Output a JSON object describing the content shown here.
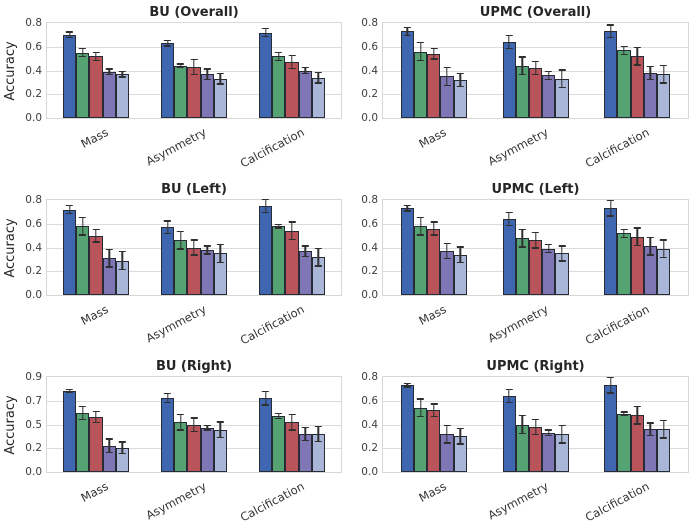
{
  "figure": {
    "background": "#ffffff",
    "palette": {
      "bar_colors": [
        "#3f66b0",
        "#55a273",
        "#b8545a",
        "#7f76b6",
        "#a9b6d8"
      ],
      "bar_edge": "#262b36",
      "error_color": "#2f2f2f",
      "grid_color": "#dcdcdc",
      "spine_color": "#d7d7d7",
      "title_color": "#262626",
      "tick_color": "#404040"
    }
  },
  "chart_data": [
    {
      "type": "bar",
      "title": "BU (Overall)",
      "ylabel": "Accuracy",
      "ylim": [
        0,
        0.8
      ],
      "yticks": [
        {
          "value": 0.0,
          "label": "0.0"
        },
        {
          "value": 0.2,
          "label": "0.2"
        },
        {
          "value": 0.4,
          "label": "0.4"
        },
        {
          "value": 0.6,
          "label": "0.6"
        },
        {
          "value": 0.8,
          "label": "0.8"
        }
      ],
      "grid": true,
      "legend": "none",
      "categories": [
        "Mass",
        "Asymmetry",
        "Calcification"
      ],
      "series": [
        {
          "color": "#3f66b0",
          "values": [
            0.7,
            0.63,
            0.72
          ],
          "errors": [
            0.03,
            0.03,
            0.04
          ]
        },
        {
          "color": "#55a273",
          "values": [
            0.55,
            0.44,
            0.52
          ],
          "errors": [
            0.04,
            0.02,
            0.04
          ]
        },
        {
          "color": "#b8545a",
          "values": [
            0.52,
            0.43,
            0.47
          ],
          "errors": [
            0.04,
            0.07,
            0.06
          ]
        },
        {
          "color": "#7f76b6",
          "values": [
            0.39,
            0.37,
            0.4
          ],
          "errors": [
            0.03,
            0.05,
            0.03
          ]
        },
        {
          "color": "#a9b6d8",
          "values": [
            0.37,
            0.33,
            0.34
          ],
          "errors": [
            0.03,
            0.05,
            0.05
          ]
        }
      ]
    },
    {
      "type": "bar",
      "title": "UPMC (Overall)",
      "ylabel": "",
      "ylim": [
        0,
        0.8
      ],
      "yticks": [
        {
          "value": 0.0,
          "label": "0.0"
        },
        {
          "value": 0.2,
          "label": "0.2"
        },
        {
          "value": 0.4,
          "label": "0.4"
        },
        {
          "value": 0.6,
          "label": "0.6"
        },
        {
          "value": 0.8,
          "label": "0.8"
        }
      ],
      "grid": true,
      "legend": "none",
      "categories": [
        "Mass",
        "Asymmetry",
        "Calcification"
      ],
      "series": [
        {
          "color": "#3f66b0",
          "values": [
            0.73,
            0.64,
            0.73
          ],
          "errors": [
            0.04,
            0.06,
            0.06
          ]
        },
        {
          "color": "#55a273",
          "values": [
            0.56,
            0.44,
            0.57
          ],
          "errors": [
            0.08,
            0.08,
            0.04
          ]
        },
        {
          "color": "#b8545a",
          "values": [
            0.54,
            0.42,
            0.52
          ],
          "errors": [
            0.05,
            0.06,
            0.08
          ]
        },
        {
          "color": "#7f76b6",
          "values": [
            0.35,
            0.36,
            0.38
          ],
          "errors": [
            0.08,
            0.04,
            0.06
          ]
        },
        {
          "color": "#a9b6d8",
          "values": [
            0.32,
            0.33,
            0.37
          ],
          "errors": [
            0.06,
            0.08,
            0.08
          ]
        }
      ]
    },
    {
      "type": "bar",
      "title": "BU (Left)",
      "ylabel": "Accuracy",
      "ylim": [
        0,
        0.8
      ],
      "yticks": [
        {
          "value": 0.0,
          "label": "0.0"
        },
        {
          "value": 0.2,
          "label": "0.2"
        },
        {
          "value": 0.4,
          "label": "0.4"
        },
        {
          "value": 0.6,
          "label": "0.6"
        },
        {
          "value": 0.8,
          "label": "0.8"
        }
      ],
      "grid": true,
      "legend": "none",
      "categories": [
        "Mass",
        "Asymmetry",
        "Calcification"
      ],
      "series": [
        {
          "color": "#3f66b0",
          "values": [
            0.72,
            0.57,
            0.75
          ],
          "errors": [
            0.04,
            0.06,
            0.06
          ]
        },
        {
          "color": "#55a273",
          "values": [
            0.58,
            0.46,
            0.58
          ],
          "errors": [
            0.08,
            0.08,
            0.02
          ]
        },
        {
          "color": "#b8545a",
          "values": [
            0.5,
            0.4,
            0.54
          ],
          "errors": [
            0.06,
            0.07,
            0.08
          ]
        },
        {
          "color": "#7f76b6",
          "values": [
            0.31,
            0.38,
            0.37
          ],
          "errors": [
            0.08,
            0.04,
            0.05
          ]
        },
        {
          "color": "#a9b6d8",
          "values": [
            0.29,
            0.35,
            0.32
          ],
          "errors": [
            0.08,
            0.08,
            0.08
          ]
        }
      ]
    },
    {
      "type": "bar",
      "title": "UPMC (Left)",
      "ylabel": "",
      "ylim": [
        0,
        0.8
      ],
      "yticks": [
        {
          "value": 0.0,
          "label": "0.0"
        },
        {
          "value": 0.2,
          "label": "0.2"
        },
        {
          "value": 0.4,
          "label": "0.4"
        },
        {
          "value": 0.6,
          "label": "0.6"
        },
        {
          "value": 0.8,
          "label": "0.8"
        }
      ],
      "grid": true,
      "legend": "none",
      "categories": [
        "Mass",
        "Asymmetry",
        "Calcification"
      ],
      "series": [
        {
          "color": "#3f66b0",
          "values": [
            0.73,
            0.64,
            0.73
          ],
          "errors": [
            0.03,
            0.06,
            0.07
          ]
        },
        {
          "color": "#55a273",
          "values": [
            0.58,
            0.48,
            0.52
          ],
          "errors": [
            0.08,
            0.08,
            0.04
          ]
        },
        {
          "color": "#b8545a",
          "values": [
            0.56,
            0.46,
            0.49
          ],
          "errors": [
            0.06,
            0.07,
            0.08
          ]
        },
        {
          "color": "#7f76b6",
          "values": [
            0.37,
            0.39,
            0.41
          ],
          "errors": [
            0.07,
            0.04,
            0.08
          ]
        },
        {
          "color": "#a9b6d8",
          "values": [
            0.34,
            0.35,
            0.39
          ],
          "errors": [
            0.07,
            0.07,
            0.08
          ]
        }
      ]
    },
    {
      "type": "bar",
      "title": "BU (Right)",
      "ylabel": "Accuracy",
      "ylim": [
        0,
        0.9
      ],
      "yticks": [
        {
          "value": 0.0,
          "label": "0.0"
        },
        {
          "value": 0.225,
          "label": "0.2"
        },
        {
          "value": 0.45,
          "label": "0.5"
        },
        {
          "value": 0.675,
          "label": "0.7"
        },
        {
          "value": 0.9,
          "label": "0.9"
        }
      ],
      "grid": true,
      "legend": "none",
      "categories": [
        "Mass",
        "Asymmetry",
        "Calcification"
      ],
      "series": [
        {
          "color": "#3f66b0",
          "values": [
            0.77,
            0.7,
            0.7
          ],
          "errors": [
            0.02,
            0.05,
            0.07
          ]
        },
        {
          "color": "#55a273",
          "values": [
            0.56,
            0.47,
            0.53
          ],
          "errors": [
            0.07,
            0.08,
            0.03
          ]
        },
        {
          "color": "#b8545a",
          "values": [
            0.52,
            0.45,
            0.47
          ],
          "errors": [
            0.06,
            0.07,
            0.08
          ]
        },
        {
          "color": "#7f76b6",
          "values": [
            0.25,
            0.42,
            0.36
          ],
          "errors": [
            0.07,
            0.03,
            0.07
          ]
        },
        {
          "color": "#a9b6d8",
          "values": [
            0.23,
            0.4,
            0.36
          ],
          "errors": [
            0.06,
            0.08,
            0.08
          ]
        }
      ]
    },
    {
      "type": "bar",
      "title": "UPMC (Right)",
      "ylabel": "",
      "ylim": [
        0,
        0.8
      ],
      "yticks": [
        {
          "value": 0.0,
          "label": "0.0"
        },
        {
          "value": 0.2,
          "label": "0.2"
        },
        {
          "value": 0.4,
          "label": "0.4"
        },
        {
          "value": 0.6,
          "label": "0.6"
        },
        {
          "value": 0.8,
          "label": "0.8"
        }
      ],
      "grid": true,
      "legend": "none",
      "categories": [
        "Mass",
        "Asymmetry",
        "Calcification"
      ],
      "series": [
        {
          "color": "#3f66b0",
          "values": [
            0.73,
            0.64,
            0.73
          ],
          "errors": [
            0.02,
            0.06,
            0.07
          ]
        },
        {
          "color": "#55a273",
          "values": [
            0.54,
            0.4,
            0.49
          ],
          "errors": [
            0.08,
            0.08,
            0.02
          ]
        },
        {
          "color": "#b8545a",
          "values": [
            0.52,
            0.38,
            0.48
          ],
          "errors": [
            0.06,
            0.07,
            0.08
          ]
        },
        {
          "color": "#7f76b6",
          "values": [
            0.32,
            0.33,
            0.36
          ],
          "errors": [
            0.08,
            0.03,
            0.06
          ]
        },
        {
          "color": "#a9b6d8",
          "values": [
            0.3,
            0.32,
            0.36
          ],
          "errors": [
            0.07,
            0.08,
            0.08
          ]
        }
      ]
    }
  ]
}
